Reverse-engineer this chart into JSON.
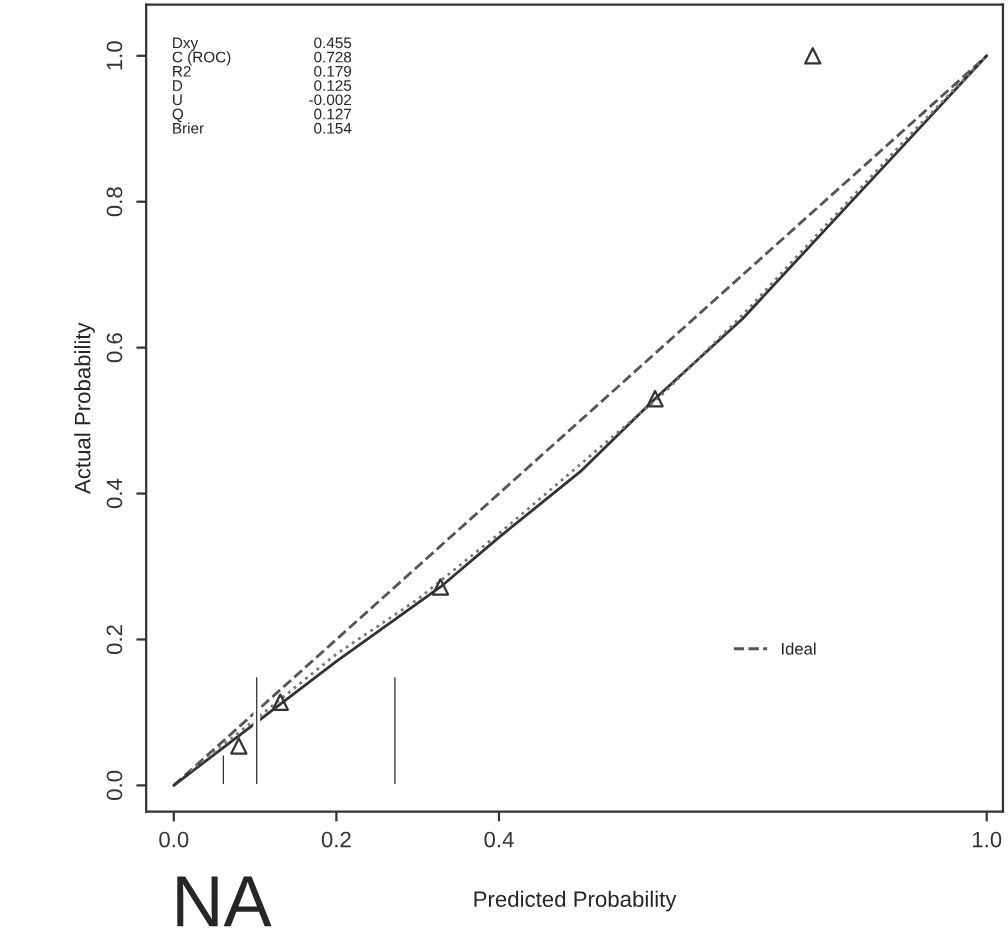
{
  "chart_data": {
    "type": "line",
    "xlabel": "Predicted Probability",
    "ylabel": "Actual Probability",
    "annotations": [
      "Dxy\nC (ROC)\nR2\nD\nU\nQ\nBrier",
      "0.455\n0.728\n0.179\n0.125\n-0.002\n0.127\n0.154",
      "NA"
    ],
    "series": [
      {
        "name": "Ideal",
        "line_style": "dashed",
        "color": "#555555",
        "x": [
          0,
          1
        ],
        "values": [
          0,
          1
        ]
      },
      {
        "line_style": "solid",
        "color": "#333333",
        "x": [
          0,
          0.1,
          0.2,
          0.328,
          0.4,
          0.5,
          0.592,
          0.7,
          0.8,
          0.9,
          1.0
        ],
        "values": [
          0,
          0.085,
          0.17,
          0.272,
          0.34,
          0.43,
          0.53,
          0.64,
          0.76,
          0.88,
          1.0
        ]
      },
      {
        "line_style": "dotted",
        "color": "#777777",
        "x": [
          0.02,
          0.1,
          0.2,
          0.3,
          0.4,
          0.5,
          0.6,
          0.7,
          0.8,
          0.9,
          1.0
        ],
        "values": [
          0.02,
          0.09,
          0.18,
          0.255,
          0.345,
          0.44,
          0.535,
          0.645,
          0.765,
          0.885,
          1.0
        ]
      },
      {
        "type": "scatter",
        "marker": "triangle",
        "color": "#333333",
        "x": [
          0.08,
          0.131,
          0.328,
          0.592,
          0.786
        ],
        "values": [
          0.054,
          0.114,
          0.272,
          0.53,
          1.0
        ]
      },
      {
        "type": "bar",
        "color": "#333333",
        "x": [
          0.061,
          0.102,
          0.272
        ],
        "values": [
          0.043,
          0.15,
          0.15
        ]
      }
    ],
    "xlim": [
      -0.034,
      1.02
    ],
    "ylim": [
      -0.036,
      1.07
    ],
    "xticks": [
      {
        "value": 0,
        "label": "0.0"
      },
      {
        "value": 0.2,
        "label": "0.2"
      },
      {
        "value": 0.4,
        "label": "0.4"
      },
      {
        "value": 1.0,
        "label": "1.0"
      }
    ],
    "yticks": [
      {
        "value": 0,
        "label": "0.0"
      },
      {
        "value": 0.2,
        "label": "0.2"
      },
      {
        "value": 0.4,
        "label": "0.4"
      },
      {
        "value": 0.6,
        "label": "0.6"
      },
      {
        "value": 0.8,
        "label": "0.8"
      },
      {
        "value": 1.0,
        "label": "1.0"
      }
    ],
    "legend": "bottom right",
    "grid": false
  }
}
